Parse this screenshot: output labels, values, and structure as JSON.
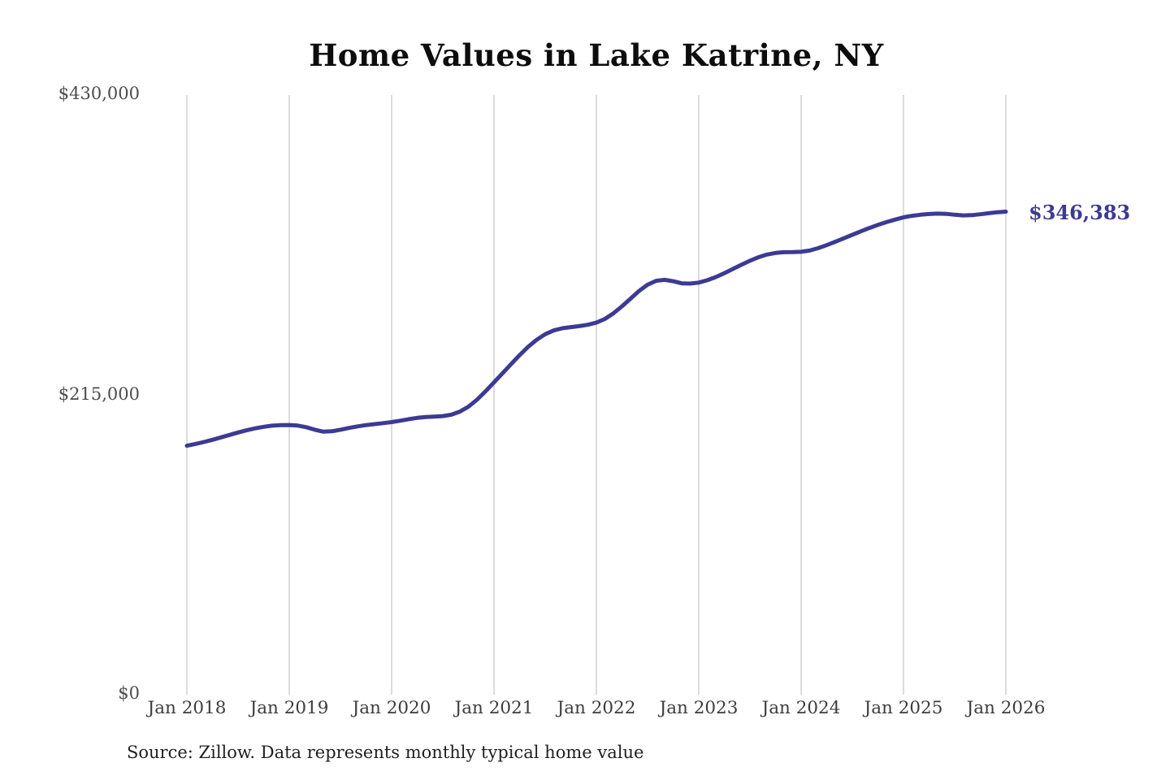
{
  "chart_data": {
    "type": "line",
    "title": "Home Values in Lake Katrine, NY",
    "end_label": "$346,383",
    "end_value": 346383,
    "source_note": "Source: Zillow. Data represents monthly typical home value",
    "x_tick_labels": [
      "Jan 2018",
      "Jan 2019",
      "Jan 2020",
      "Jan 2021",
      "Jan 2022",
      "Jan 2023",
      "Jan 2024",
      "Jan 2025",
      "Jan 2026"
    ],
    "y_tick_labels": [
      "$430,000",
      "$215,000",
      "$0"
    ],
    "y_axis": {
      "min": 0,
      "max": 430000,
      "ticks": [
        0,
        215000,
        430000
      ]
    },
    "grid": "vertical-yearly-only",
    "legend": "none",
    "line_color": "#3c3a93",
    "gridline_color": "#c9c9c9",
    "tick_label_color": "#4d4d4d",
    "series": [
      {
        "name": "Typical home value",
        "frequency": "monthly",
        "months": [
          "2018-01",
          "2018-02",
          "2018-03",
          "2018-04",
          "2018-05",
          "2018-06",
          "2018-07",
          "2018-08",
          "2018-09",
          "2018-10",
          "2018-11",
          "2018-12",
          "2019-01",
          "2019-02",
          "2019-03",
          "2019-04",
          "2019-05",
          "2019-06",
          "2019-07",
          "2019-08",
          "2019-09",
          "2019-10",
          "2019-11",
          "2019-12",
          "2020-01",
          "2020-02",
          "2020-03",
          "2020-04",
          "2020-05",
          "2020-06",
          "2020-07",
          "2020-08",
          "2020-09",
          "2020-10",
          "2020-11",
          "2020-12",
          "2021-01",
          "2021-02",
          "2021-03",
          "2021-04",
          "2021-05",
          "2021-06",
          "2021-07",
          "2021-08",
          "2021-09",
          "2021-10",
          "2021-11",
          "2021-12",
          "2022-01",
          "2022-02",
          "2022-03",
          "2022-04",
          "2022-05",
          "2022-06",
          "2022-07",
          "2022-08",
          "2022-09",
          "2022-10",
          "2022-11",
          "2022-12",
          "2023-01",
          "2023-02",
          "2023-03",
          "2023-04",
          "2023-05",
          "2023-06",
          "2023-07",
          "2023-08",
          "2023-09",
          "2023-10",
          "2023-11",
          "2023-12",
          "2024-01",
          "2024-02",
          "2024-03",
          "2024-04",
          "2024-05",
          "2024-06",
          "2024-07",
          "2024-08",
          "2024-09",
          "2024-10",
          "2024-11",
          "2024-12",
          "2025-01",
          "2025-02",
          "2025-03",
          "2025-04",
          "2025-05",
          "2025-06",
          "2025-07",
          "2025-08",
          "2025-09",
          "2025-10",
          "2025-11",
          "2025-12",
          "2026-01"
        ],
        "values": [
          178500,
          179800,
          181200,
          182800,
          184500,
          186300,
          188000,
          189600,
          191000,
          192100,
          192900,
          193300,
          193400,
          193000,
          191800,
          190000,
          188600,
          188900,
          190000,
          191300,
          192400,
          193300,
          194000,
          194700,
          195500,
          196500,
          197600,
          198500,
          199100,
          199400,
          199800,
          200800,
          203000,
          206500,
          211500,
          217500,
          224000,
          230500,
          237000,
          243500,
          249500,
          254500,
          258500,
          261200,
          262800,
          263600,
          264300,
          265300,
          266800,
          269500,
          273500,
          278500,
          284000,
          289500,
          294000,
          296800,
          297500,
          296500,
          295000,
          294800,
          295500,
          297200,
          299500,
          302300,
          305300,
          308300,
          311200,
          313700,
          315600,
          316800,
          317300,
          317400,
          317600,
          318500,
          320200,
          322400,
          324800,
          327300,
          329800,
          332300,
          334700,
          336900,
          338900,
          340700,
          342300,
          343400,
          344200,
          344700,
          345000,
          344800,
          344200,
          343700,
          343900,
          344500,
          345300,
          346000,
          346383
        ]
      }
    ]
  }
}
